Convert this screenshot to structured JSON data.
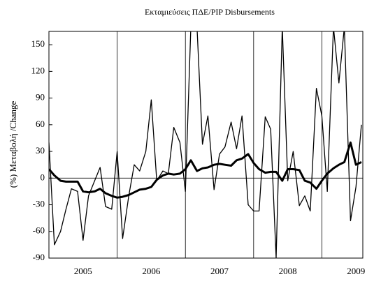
{
  "chart_data": {
    "type": "line",
    "title": "Εκταμιεύσεις ΠΔΕ/PIP Disbursements",
    "y_label": "(%) Μεταβολή /Change",
    "x": [
      2005.0,
      2005.08,
      2005.17,
      2005.25,
      2005.33,
      2005.42,
      2005.5,
      2005.58,
      2005.67,
      2005.75,
      2005.83,
      2005.92,
      2006.0,
      2006.08,
      2006.17,
      2006.25,
      2006.33,
      2006.42,
      2006.5,
      2006.58,
      2006.67,
      2006.75,
      2006.83,
      2006.92,
      2007.0,
      2007.08,
      2007.17,
      2007.25,
      2007.33,
      2007.42,
      2007.5,
      2007.58,
      2007.67,
      2007.75,
      2007.83,
      2007.92,
      2008.0,
      2008.08,
      2008.17,
      2008.25,
      2008.33,
      2008.42,
      2008.5,
      2008.58,
      2008.67,
      2008.75,
      2008.83,
      2008.92,
      2009.0,
      2009.08,
      2009.17,
      2009.25,
      2009.33,
      2009.42,
      2009.5,
      2009.58
    ],
    "series": [
      {
        "color": "#000000",
        "width": 1.3,
        "values": [
          40,
          -75,
          -60,
          -35,
          -12,
          -15,
          -70,
          -20,
          -3,
          12,
          -32,
          -35,
          30,
          -68,
          -20,
          15,
          8,
          30,
          88,
          -3,
          8,
          5,
          57,
          40,
          -15,
          170,
          170,
          38,
          70,
          -13,
          27,
          35,
          63,
          33,
          70,
          -30,
          -37,
          -37,
          69,
          55,
          -90,
          170,
          -3,
          30,
          -31,
          -20,
          -37,
          101,
          70,
          -15,
          170,
          107,
          170,
          -48,
          -10,
          60
        ]
      },
      {
        "color": "#000000",
        "width": 3,
        "values": [
          10,
          3,
          -3,
          -4,
          -4,
          -4,
          -15,
          -16,
          -15,
          -12,
          -17,
          -20,
          -22,
          -21,
          -19,
          -16,
          -13,
          -12,
          -10,
          -2,
          3,
          5,
          4,
          5,
          10,
          20,
          8,
          11,
          12,
          15,
          16,
          15,
          14,
          20,
          22,
          27,
          17,
          10,
          6,
          7,
          7,
          -3,
          10,
          10,
          9,
          -3,
          -5,
          -12,
          -3,
          5,
          11,
          15,
          18,
          40,
          15,
          18
        ]
      }
    ],
    "xlim": [
      2005,
      2009.6
    ],
    "xticks": [
      {
        "value": 2005.5,
        "label": "2005"
      },
      {
        "value": 2006.5,
        "label": "2006"
      },
      {
        "value": 2007.5,
        "label": "2007"
      },
      {
        "value": 2008.5,
        "label": "2008"
      },
      {
        "value": 2009.5,
        "label": "2009"
      }
    ],
    "vlines": [
      2006,
      2007,
      2008,
      2009
    ],
    "hline": 0,
    "ylim": [
      -90,
      165
    ],
    "yticks": [
      -90,
      -60,
      -30,
      0,
      30,
      60,
      90,
      120,
      150
    ]
  }
}
